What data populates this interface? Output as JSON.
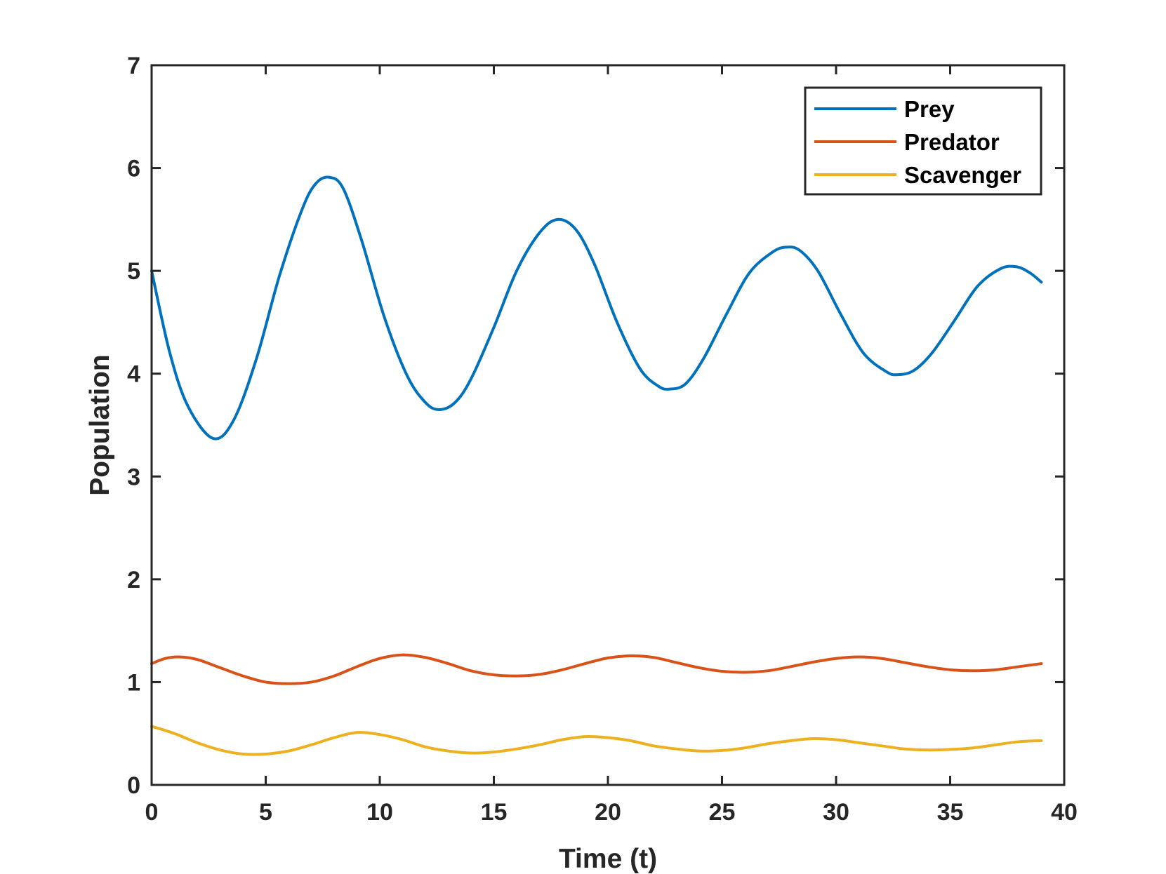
{
  "chart_data": {
    "type": "line",
    "title": "",
    "xlabel": "Time (t)",
    "ylabel": "Population",
    "xlim": [
      0,
      40
    ],
    "ylim": [
      0,
      7
    ],
    "xticks": [
      0,
      5,
      10,
      15,
      20,
      25,
      30,
      35,
      40
    ],
    "yticks": [
      0,
      1,
      2,
      3,
      4,
      5,
      6,
      7
    ],
    "xtick_labels": [
      "0",
      "5",
      "10",
      "15",
      "20",
      "25",
      "30",
      "35",
      "40"
    ],
    "ytick_labels": [
      "0",
      "1",
      "2",
      "3",
      "4",
      "5",
      "6",
      "7"
    ],
    "grid": false,
    "legend_position": "top-right",
    "series": [
      {
        "name": "Prey",
        "color": "#0072BD",
        "points": [
          [
            0,
            5.0
          ],
          [
            0.8,
            4.2
          ],
          [
            1.6,
            3.68
          ],
          [
            2.7,
            3.37
          ],
          [
            3.6,
            3.55
          ],
          [
            4.6,
            4.15
          ],
          [
            5.6,
            4.95
          ],
          [
            6.6,
            5.6
          ],
          [
            7.2,
            5.85
          ],
          [
            7.8,
            5.91
          ],
          [
            8.4,
            5.8
          ],
          [
            9.2,
            5.3
          ],
          [
            10.2,
            4.55
          ],
          [
            11.2,
            3.98
          ],
          [
            12.0,
            3.72
          ],
          [
            12.6,
            3.65
          ],
          [
            13.3,
            3.72
          ],
          [
            14.0,
            3.95
          ],
          [
            15.0,
            4.45
          ],
          [
            16.0,
            5.0
          ],
          [
            17.0,
            5.37
          ],
          [
            17.8,
            5.5
          ],
          [
            18.6,
            5.4
          ],
          [
            19.4,
            5.07
          ],
          [
            20.4,
            4.5
          ],
          [
            21.4,
            4.05
          ],
          [
            22.2,
            3.88
          ],
          [
            22.7,
            3.85
          ],
          [
            23.4,
            3.9
          ],
          [
            24.2,
            4.15
          ],
          [
            25.2,
            4.58
          ],
          [
            26.2,
            4.98
          ],
          [
            27.2,
            5.18
          ],
          [
            27.8,
            5.23
          ],
          [
            28.4,
            5.2
          ],
          [
            29.2,
            5.0
          ],
          [
            30.2,
            4.58
          ],
          [
            31.2,
            4.2
          ],
          [
            32.2,
            4.02
          ],
          [
            32.7,
            3.99
          ],
          [
            33.4,
            4.03
          ],
          [
            34.2,
            4.2
          ],
          [
            35.2,
            4.52
          ],
          [
            36.2,
            4.85
          ],
          [
            37.2,
            5.02
          ],
          [
            37.9,
            5.04
          ],
          [
            38.5,
            4.98
          ],
          [
            39.0,
            4.89
          ]
        ]
      },
      {
        "name": "Predator",
        "color": "#D95319",
        "points": [
          [
            0,
            1.18
          ],
          [
            0.6,
            1.23
          ],
          [
            1.2,
            1.245
          ],
          [
            2.0,
            1.22
          ],
          [
            3.0,
            1.14
          ],
          [
            4.0,
            1.06
          ],
          [
            5.0,
            1.0
          ],
          [
            6.0,
            0.985
          ],
          [
            7.0,
            1.0
          ],
          [
            8.0,
            1.06
          ],
          [
            9.0,
            1.15
          ],
          [
            10.0,
            1.23
          ],
          [
            11.0,
            1.265
          ],
          [
            12.0,
            1.24
          ],
          [
            13.0,
            1.18
          ],
          [
            14.0,
            1.11
          ],
          [
            15.0,
            1.07
          ],
          [
            16.0,
            1.06
          ],
          [
            17.0,
            1.075
          ],
          [
            18.0,
            1.12
          ],
          [
            19.0,
            1.18
          ],
          [
            20.0,
            1.235
          ],
          [
            21.0,
            1.255
          ],
          [
            22.0,
            1.24
          ],
          [
            23.0,
            1.19
          ],
          [
            24.0,
            1.14
          ],
          [
            25.0,
            1.105
          ],
          [
            26.0,
            1.095
          ],
          [
            27.0,
            1.11
          ],
          [
            28.0,
            1.15
          ],
          [
            29.0,
            1.195
          ],
          [
            30.0,
            1.23
          ],
          [
            31.0,
            1.245
          ],
          [
            32.0,
            1.23
          ],
          [
            33.0,
            1.19
          ],
          [
            34.0,
            1.15
          ],
          [
            35.0,
            1.12
          ],
          [
            36.0,
            1.11
          ],
          [
            37.0,
            1.12
          ],
          [
            38.0,
            1.15
          ],
          [
            39.0,
            1.18
          ]
        ]
      },
      {
        "name": "Scavenger",
        "color": "#EDB120",
        "points": [
          [
            0,
            0.57
          ],
          [
            1.0,
            0.5
          ],
          [
            2.0,
            0.41
          ],
          [
            3.0,
            0.34
          ],
          [
            4.0,
            0.3
          ],
          [
            5.0,
            0.3
          ],
          [
            6.0,
            0.33
          ],
          [
            7.0,
            0.39
          ],
          [
            8.0,
            0.46
          ],
          [
            9.0,
            0.51
          ],
          [
            10.0,
            0.49
          ],
          [
            11.0,
            0.44
          ],
          [
            12.0,
            0.37
          ],
          [
            13.0,
            0.33
          ],
          [
            14.0,
            0.31
          ],
          [
            15.0,
            0.32
          ],
          [
            16.0,
            0.35
          ],
          [
            17.0,
            0.39
          ],
          [
            18.0,
            0.44
          ],
          [
            19.0,
            0.47
          ],
          [
            20.0,
            0.46
          ],
          [
            21.0,
            0.43
          ],
          [
            22.0,
            0.38
          ],
          [
            23.0,
            0.35
          ],
          [
            24.0,
            0.33
          ],
          [
            25.0,
            0.335
          ],
          [
            26.0,
            0.36
          ],
          [
            27.0,
            0.4
          ],
          [
            28.0,
            0.43
          ],
          [
            29.0,
            0.45
          ],
          [
            30.0,
            0.44
          ],
          [
            31.0,
            0.41
          ],
          [
            32.0,
            0.38
          ],
          [
            33.0,
            0.35
          ],
          [
            34.0,
            0.34
          ],
          [
            35.0,
            0.345
          ],
          [
            36.0,
            0.36
          ],
          [
            37.0,
            0.39
          ],
          [
            38.0,
            0.42
          ],
          [
            39.0,
            0.43
          ]
        ]
      }
    ]
  }
}
